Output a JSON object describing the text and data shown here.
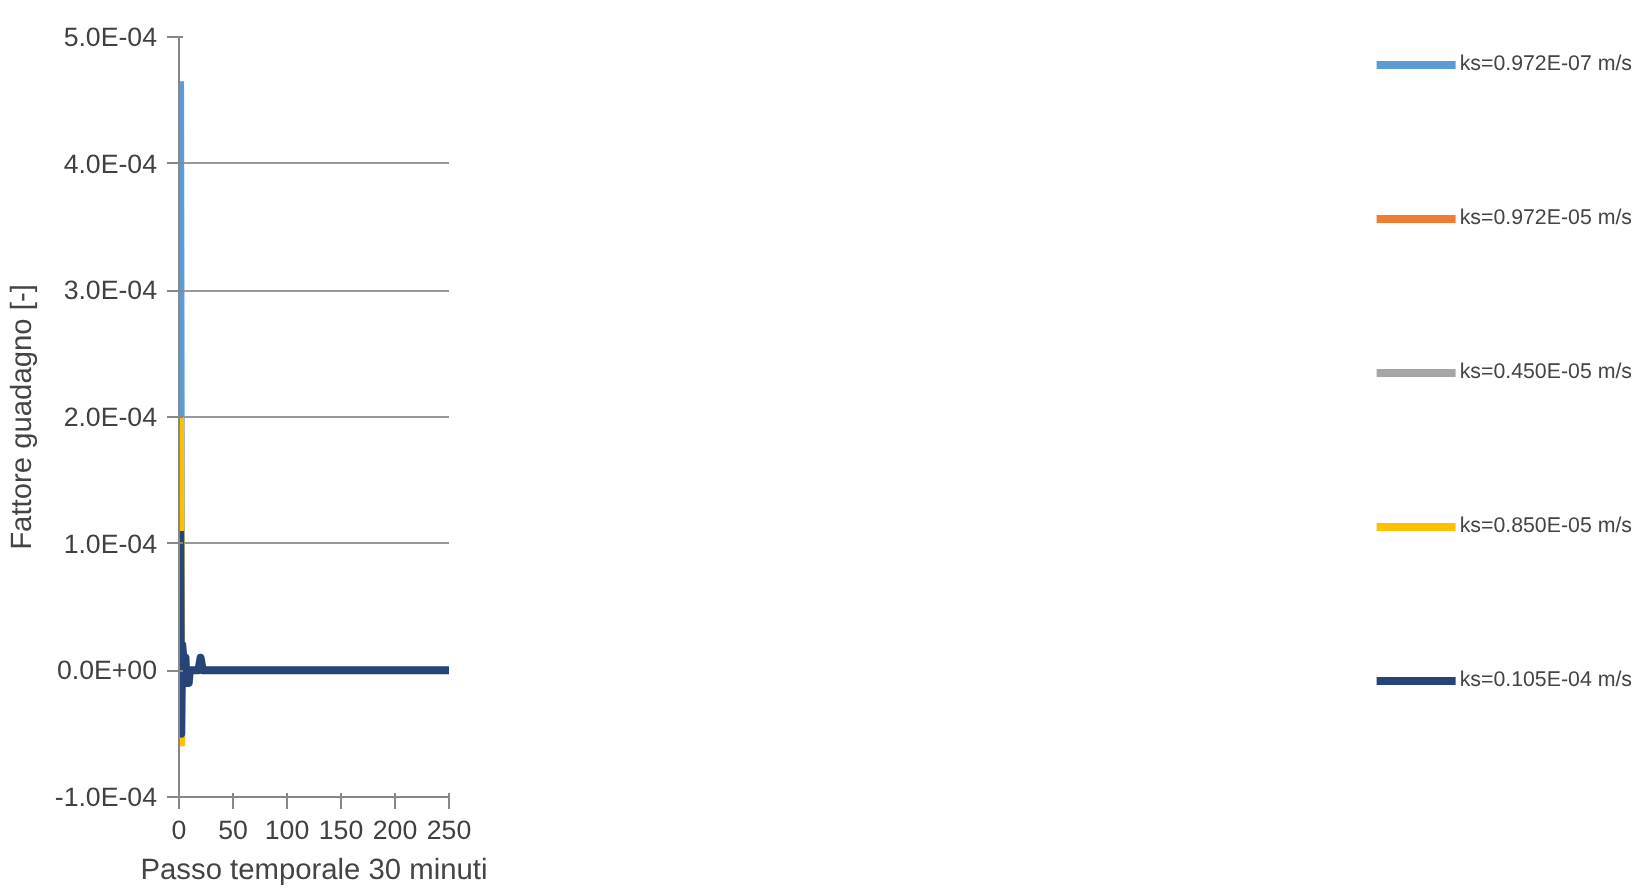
{
  "chart_data": {
    "type": "line",
    "xlabel": "Passo temporale 30 minuti",
    "ylabel": "Fattore guadagno [-]",
    "x": [
      1,
      2,
      3,
      4,
      5,
      6,
      7,
      8,
      9,
      10,
      12,
      14,
      16,
      18,
      20,
      22,
      25,
      50,
      100,
      150,
      200,
      250
    ],
    "series": [
      {
        "name": "ks=0.972E-07 m/s",
        "color": "#5b9bd5",
        "values": [
          0.000465,
          -5e-05,
          null,
          null,
          null,
          null,
          null,
          null,
          null,
          null,
          null,
          null,
          null,
          null,
          null,
          null,
          null,
          null,
          null,
          null,
          null,
          null
        ]
      },
      {
        "name": "ks=0.972E-05 m/s",
        "color": "#ed7d31",
        "values": [
          null,
          null,
          null,
          null,
          null,
          null,
          null,
          null,
          null,
          null,
          null,
          null,
          null,
          null,
          null,
          null,
          null,
          null,
          null,
          null,
          null,
          null
        ]
      },
      {
        "name": "ks=0.450E-05 m/s",
        "color": "#a5a5a5",
        "values": [
          null,
          null,
          null,
          null,
          null,
          null,
          null,
          null,
          null,
          null,
          null,
          null,
          null,
          null,
          null,
          null,
          null,
          null,
          null,
          null,
          null,
          null
        ]
      },
      {
        "name": "ks=0.850E-05 m/s",
        "color": "#ffc000",
        "values": [
          0.0002,
          -6e-05,
          null,
          null,
          null,
          null,
          null,
          null,
          null,
          null,
          null,
          null,
          null,
          null,
          null,
          null,
          null,
          null,
          null,
          null,
          null,
          null
        ]
      },
      {
        "name": "ks=0.105E-04 m/s",
        "color": "#264478",
        "values": [
          0.00011,
          -5e-05,
          2e-05,
          1e-05,
          0,
          1e-05,
          -1e-05,
          0,
          -1e-05,
          0,
          0,
          0,
          0,
          0,
          1e-05,
          0,
          0,
          0,
          0,
          0,
          0,
          0
        ]
      }
    ],
    "xlim": [
      0,
      250
    ],
    "xticks": [
      0,
      50,
      100,
      150,
      200,
      250
    ],
    "ylim": [
      -0.0001,
      0.0005
    ],
    "yticks": [
      {
        "value": -0.0001,
        "label": "-1.0E-04"
      },
      {
        "value": 0,
        "label": "0.0E+00"
      },
      {
        "value": 0.0001,
        "label": "1.0E-04"
      },
      {
        "value": 0.0002,
        "label": "2.0E-04"
      },
      {
        "value": 0.0003,
        "label": "3.0E-04"
      },
      {
        "value": 0.0004,
        "label": "4.0E-04"
      },
      {
        "value": 0.0005,
        "label": "5.0E-04"
      }
    ],
    "grid": "y",
    "legend": "right",
    "line_style": "solid"
  }
}
